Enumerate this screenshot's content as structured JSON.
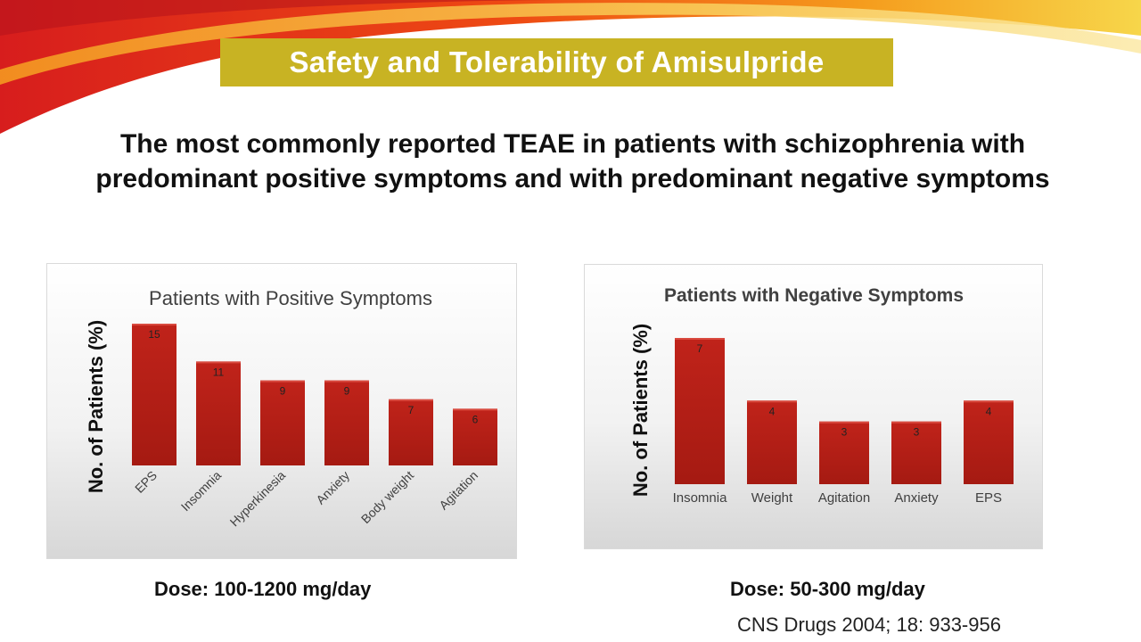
{
  "slide": {
    "title": "Safety and Tolerability of Amisulpride",
    "subtitle": "The most commonly reported TEAE in patients with schizophrenia with predominant positive symptoms and with predominant negative symptoms",
    "citation": "CNS Drugs 2004; 18: 933-956",
    "accent_color": "#c8b323"
  },
  "chart_data": [
    {
      "type": "bar",
      "title": "Patients with Positive Symptoms",
      "ylabel": "No. of Patients (%)",
      "xlabel": "",
      "categories": [
        "EPS",
        "Insomnia",
        "Hyperkinesia",
        "Anxiety",
        "Body weight",
        "Agitation"
      ],
      "values": [
        15,
        11,
        9,
        9,
        7,
        6
      ],
      "ylim": [
        0,
        15
      ],
      "grid": false,
      "bar_color": "#c0231a",
      "dose": "Dose: 100-1200 mg/day"
    },
    {
      "type": "bar",
      "title": "Patients with Negative Symptoms",
      "ylabel": "No. of Patients (%)",
      "xlabel": "",
      "categories": [
        "Insomnia",
        "Weight",
        "Agitation",
        "Anxiety",
        "EPS"
      ],
      "values": [
        7,
        4,
        3,
        3,
        4
      ],
      "ylim": [
        0,
        7
      ],
      "grid": false,
      "bar_color": "#c0231a",
      "dose": "Dose: 50-300 mg/day"
    }
  ]
}
